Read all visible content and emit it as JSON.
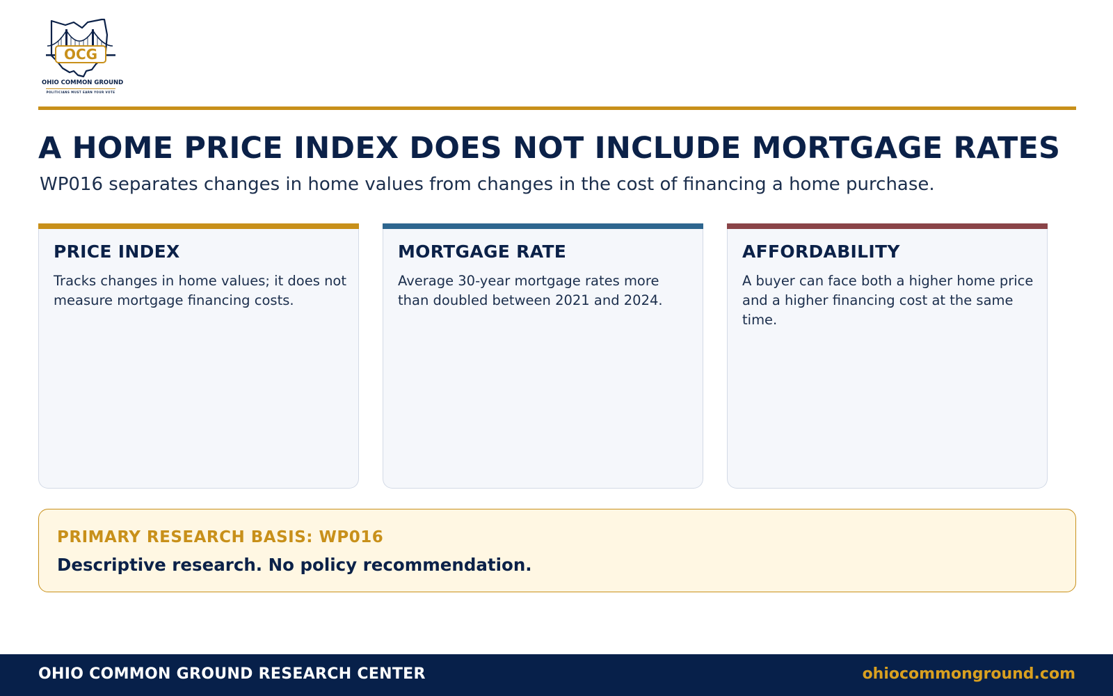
{
  "logo": {
    "initials": "OCG",
    "name": "OHIO COMMON GROUND",
    "tagline": "POLITICIANS MUST EARN YOUR VOTE"
  },
  "header": {
    "title": "A HOME PRICE INDEX DOES NOT INCLUDE MORTGAGE RATES",
    "subtitle": "WP016 separates changes in home values from changes in the cost of financing a home purchase."
  },
  "cards": [
    {
      "title": "PRICE INDEX",
      "text": "Tracks changes in home values; it does not measure mortgage financing costs.",
      "accent": "#c8901a"
    },
    {
      "title": "MORTGAGE RATE",
      "text": "Average 30-year mortgage rates more than doubled between 2021 and 2024.",
      "accent": "#2e668f"
    },
    {
      "title": "AFFORDABILITY",
      "text": "A buyer can face both a higher home price and a higher financing cost at the same time.",
      "accent": "#8a4448"
    }
  ],
  "basis": {
    "label": "PRIMARY RESEARCH BASIS: WP016",
    "text": "Descriptive research. No policy recommendation."
  },
  "footer": {
    "org": "OHIO COMMON GROUND RESEARCH CENTER",
    "url": "ohiocommonground.com"
  },
  "colors": {
    "navy": "#0b2148",
    "gold": "#c8901a",
    "footer_bg": "#07204a"
  }
}
